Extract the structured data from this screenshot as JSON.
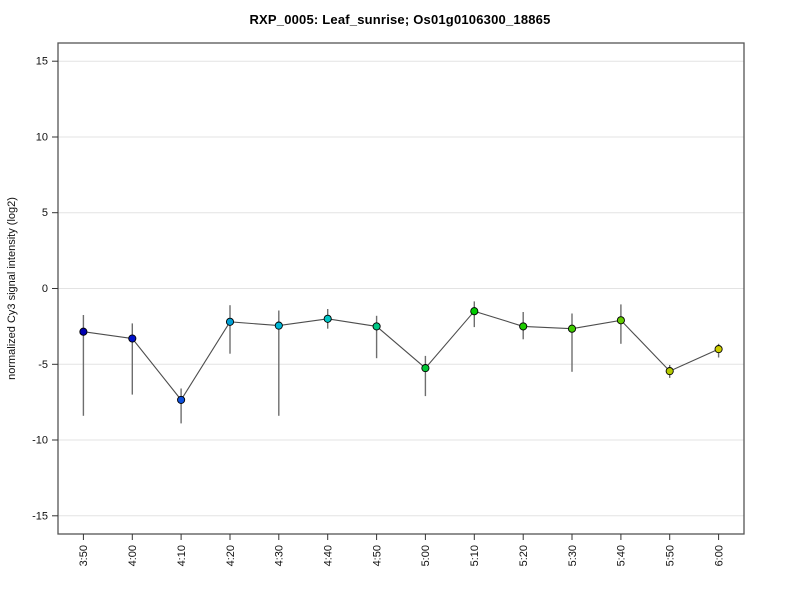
{
  "title": "RXP_0005: Leaf_sunrise; Os01g0106300_18865",
  "chart_data": {
    "type": "line",
    "title": "RXP_0005: Leaf_sunrise; Os01g0106300_18865",
    "xlabel": "",
    "ylabel": "normalized Cy3 signal intensity (log2)",
    "categories": [
      "3:50",
      "4:00",
      "4:10",
      "4:20",
      "4:30",
      "4:40",
      "4:50",
      "5:00",
      "5:10",
      "5:20",
      "5:30",
      "5:40",
      "5:50",
      "6:00"
    ],
    "series": [
      {
        "name": "normalized Cy3 signal intensity",
        "values": [
          -2.85,
          -3.3,
          -7.35,
          -2.2,
          -2.45,
          -2.0,
          -2.5,
          -5.25,
          -1.5,
          -2.5,
          -2.65,
          -2.1,
          -5.45,
          -4.0
        ],
        "error_low": [
          -8.4,
          -7.0,
          -8.9,
          -4.3,
          -8.4,
          -2.65,
          -4.6,
          -7.1,
          -2.55,
          -3.35,
          -5.5,
          -3.65,
          -5.9,
          -4.55
        ],
        "error_high": [
          -1.75,
          -2.3,
          -6.6,
          -1.1,
          -1.45,
          -1.35,
          -1.8,
          -4.45,
          -0.85,
          -1.55,
          -1.65,
          -1.05,
          -5.05,
          -3.65
        ],
        "point_colors": [
          "#0000B2",
          "#0011CC",
          "#0D4FDB",
          "#00A0D6",
          "#00B7D6",
          "#00C7C7",
          "#00C785",
          "#00C736",
          "#00CC00",
          "#1ECC00",
          "#3FCC00",
          "#63CC00",
          "#B5C900",
          "#CDCD00"
        ]
      }
    ],
    "ylim": [
      -15,
      15
    ],
    "yticks": [
      -15,
      -10,
      -5,
      0,
      5,
      10,
      15
    ],
    "axis_expansion": 0.04,
    "grid": "horizontal-only",
    "legend": "none",
    "marker": "circle-with-black-outline",
    "error_bars": "vertical-no-caps"
  },
  "colors": {
    "background": "#ffffff",
    "frame": "#555555",
    "grid": "#e3e3e3",
    "line": "#4d4d4d",
    "error_bar": "#6e6e6e",
    "marker_stroke": "#000000",
    "tick": "#333333",
    "tick_label": "#111111",
    "title": "#000000"
  }
}
